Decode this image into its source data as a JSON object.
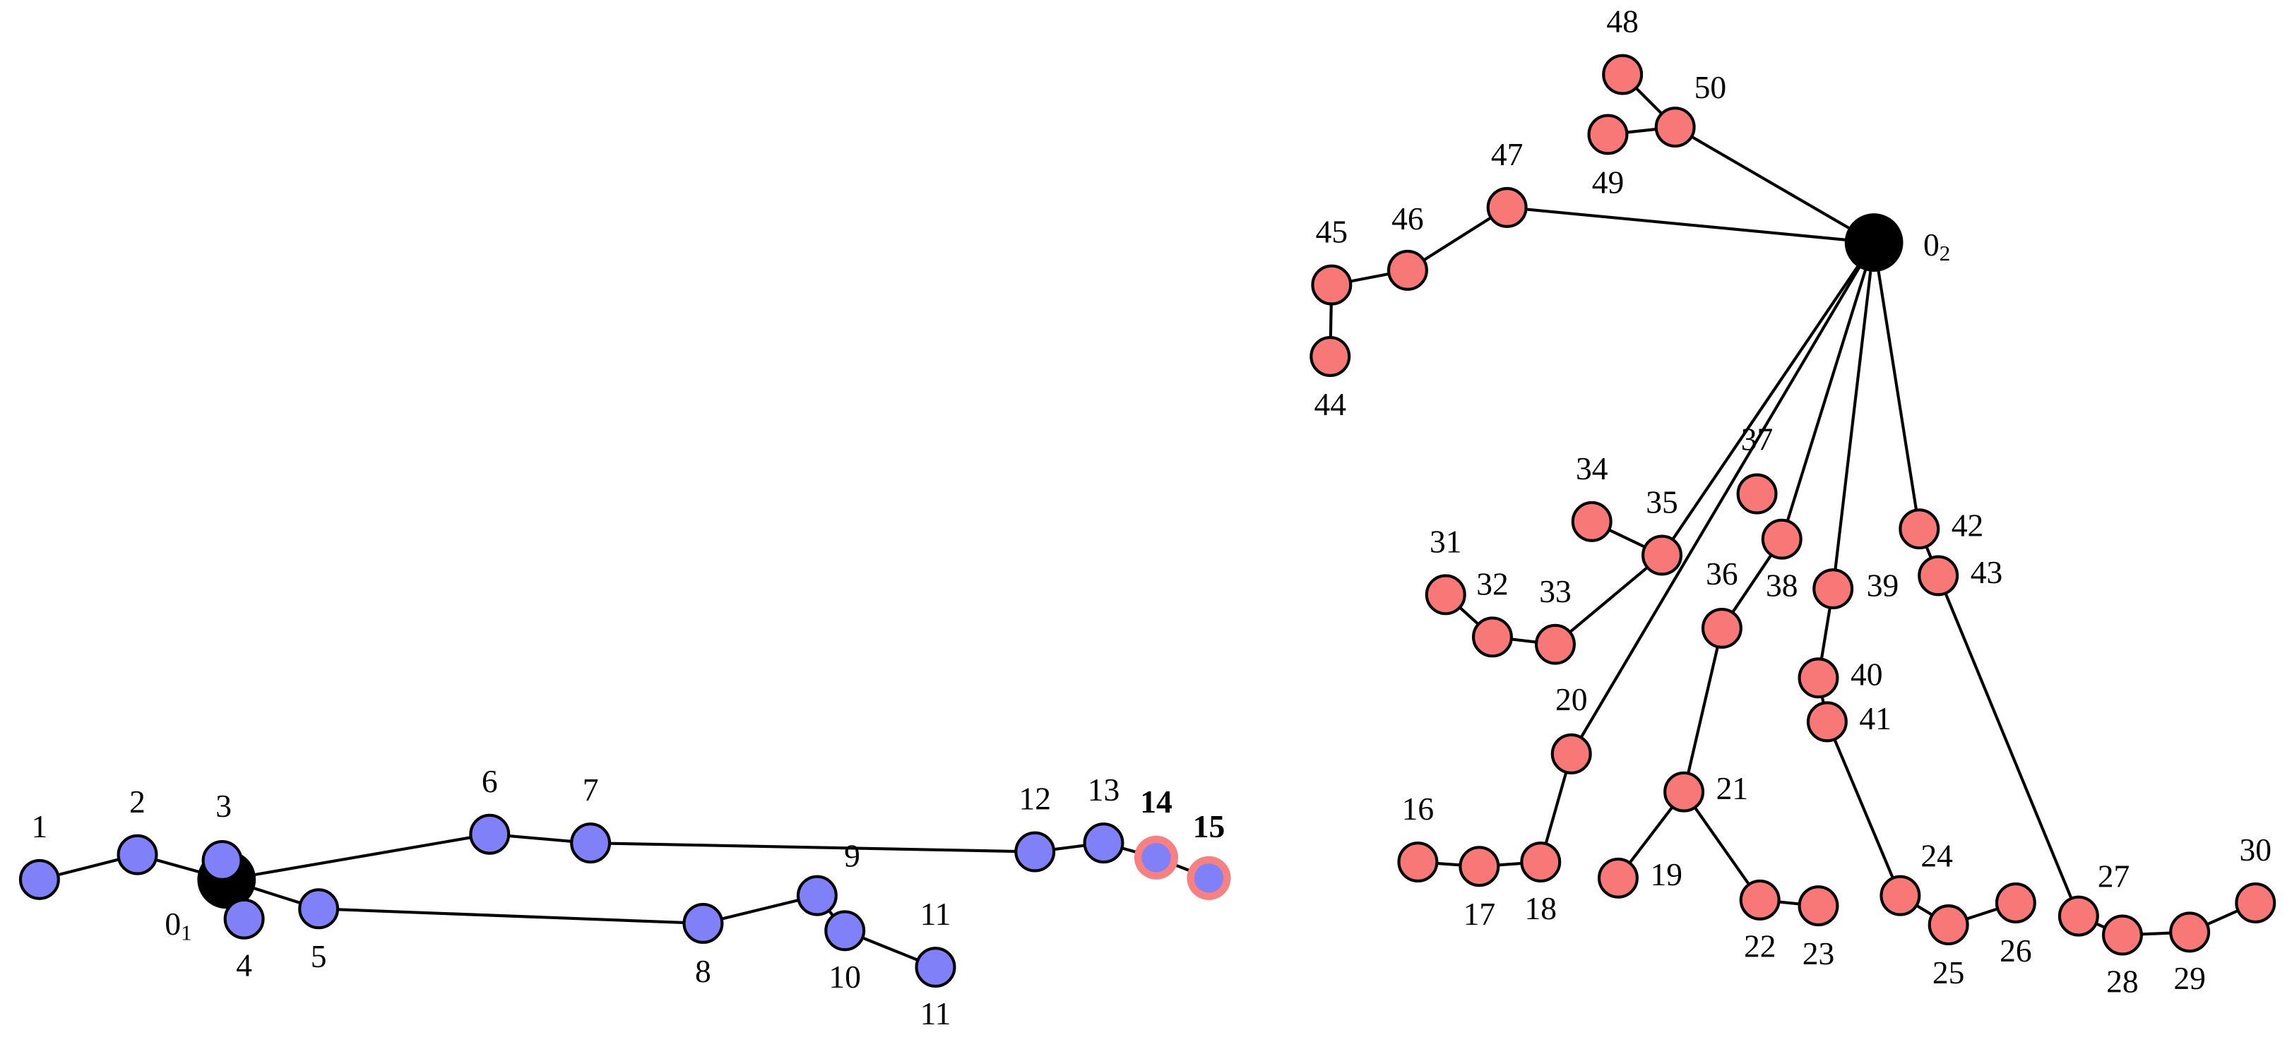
{
  "trees": [
    {
      "color": "#8080f8",
      "highlight_color": "#f88080",
      "root": {
        "label": "0",
        "subscript": "1"
      },
      "nodes": [
        {
          "labels": [
            "1"
          ]
        },
        {
          "labels": [
            "2"
          ]
        },
        {
          "labels": [
            "3"
          ]
        },
        {
          "labels": [
            "4"
          ]
        },
        {
          "labels": [
            "5"
          ]
        },
        {
          "labels": [
            "6"
          ]
        },
        {
          "labels": [
            "7"
          ]
        },
        {
          "labels": [
            "8"
          ]
        },
        {
          "labels": [
            "9"
          ]
        },
        {
          "labels": [
            "10"
          ]
        },
        {
          "labels": [
            "11",
            "11"
          ]
        },
        {
          "labels": [
            "12"
          ]
        },
        {
          "labels": [
            "13"
          ]
        },
        {
          "labels": [
            "14"
          ],
          "highlighted": true
        },
        {
          "labels": [
            "15"
          ],
          "highlighted": true
        }
      ]
    },
    {
      "color": "#f87878",
      "root": {
        "label": "0",
        "subscript": "2"
      },
      "nodes": [
        {
          "labels": [
            "16"
          ]
        },
        {
          "labels": [
            "17"
          ]
        },
        {
          "labels": [
            "18"
          ]
        },
        {
          "labels": [
            "19"
          ]
        },
        {
          "labels": [
            "20"
          ]
        },
        {
          "labels": [
            "21"
          ]
        },
        {
          "labels": [
            "22"
          ]
        },
        {
          "labels": [
            "23"
          ]
        },
        {
          "labels": [
            "24"
          ]
        },
        {
          "labels": [
            "25"
          ]
        },
        {
          "labels": [
            "26"
          ]
        },
        {
          "labels": [
            "27"
          ]
        },
        {
          "labels": [
            "28"
          ]
        },
        {
          "labels": [
            "29"
          ]
        },
        {
          "labels": [
            "30"
          ]
        },
        {
          "labels": [
            "31"
          ]
        },
        {
          "labels": [
            "32"
          ]
        },
        {
          "labels": [
            "33"
          ]
        },
        {
          "labels": [
            "34"
          ]
        },
        {
          "labels": [
            "35"
          ]
        },
        {
          "labels": [
            "36"
          ]
        },
        {
          "labels": [
            "37"
          ]
        },
        {
          "labels": [
            "38"
          ]
        },
        {
          "labels": [
            "39"
          ]
        },
        {
          "labels": [
            "40"
          ]
        },
        {
          "labels": [
            "41"
          ]
        },
        {
          "labels": [
            "42"
          ]
        },
        {
          "labels": [
            "43"
          ]
        },
        {
          "labels": [
            "44"
          ]
        },
        {
          "labels": [
            "45"
          ]
        },
        {
          "labels": [
            "46"
          ]
        },
        {
          "labels": [
            "47"
          ]
        },
        {
          "labels": [
            "48"
          ]
        },
        {
          "labels": [
            "49"
          ]
        },
        {
          "labels": [
            "50"
          ]
        }
      ]
    }
  ]
}
